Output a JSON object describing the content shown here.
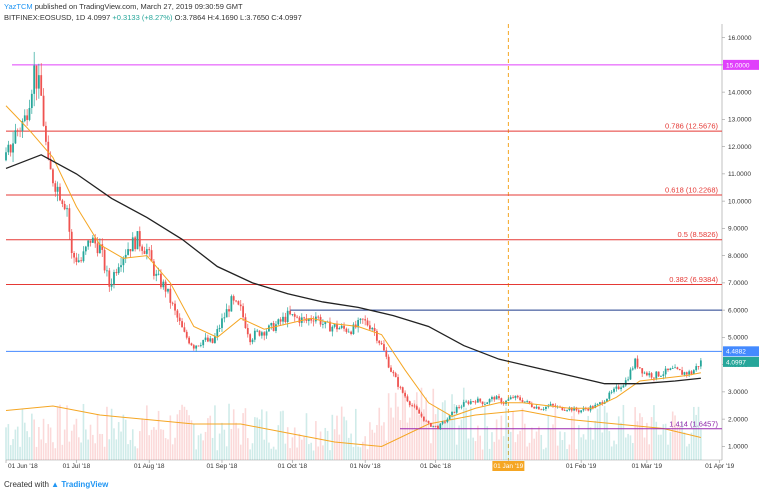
{
  "header": {
    "user": "YazTCM",
    "published": "published on TradingView.com, March 27, 2019 09:30:59 GMT",
    "symbol": "BITFINEX:EOSUSD, 1D",
    "last": "4.0997",
    "change": "+0.3133 (+8.27%)",
    "ohlc": "O:3.7864 H:4.1690 L:3.7650 C:4.0997"
  },
  "footer": {
    "created": "Created with",
    "brand": "TradingView"
  },
  "colors": {
    "up": "#26a69a",
    "down": "#ef5350",
    "fib": "#e53935",
    "ma_fast": "#f5a623",
    "ma_slow": "#222222",
    "resistance": "#1e3a8a",
    "support": "#448aff",
    "magenta": "#e040fb",
    "purple": "#9c27b0",
    "vline": "#f5a623"
  },
  "chart_data": {
    "type": "candlestick",
    "title": "",
    "xlabel": "",
    "ylabel": "",
    "ylim": [
      0.5,
      16.5
    ],
    "y_ticks": [
      "16.0000",
      "15.0000",
      "14.0000",
      "13.0000",
      "12.0000",
      "11.0000",
      "10.0000",
      "9.0000",
      "8.0000",
      "7.0000",
      "6.0000",
      "5.0000",
      "4.0000",
      "3.0000",
      "2.0000",
      "1.0000"
    ],
    "y_tick_values": [
      16,
      15,
      14,
      13,
      12,
      11,
      10,
      9,
      8,
      7,
      6,
      5,
      4,
      3,
      2,
      1
    ],
    "x_ticks": [
      "01 Jun '18",
      "01 Jul '18",
      "01 Aug '18",
      "01 Sep '18",
      "01 Oct '18",
      "01 Nov '18",
      "01 Dec '18",
      "01 Jan '19",
      "01 Feb '19",
      "01 Mar '19",
      "01 Apr '19"
    ],
    "x_tick_days": [
      0,
      30,
      61,
      92,
      122,
      153,
      183,
      214,
      245,
      273,
      304
    ],
    "fib_levels": [
      {
        "label": "0.786 (12.5676)",
        "value": 12.5676
      },
      {
        "label": "0.618 (10.2268)",
        "value": 10.2268
      },
      {
        "label": "0.5 (8.5826)",
        "value": 8.5826
      },
      {
        "label": "0.382 (6.9384)",
        "value": 6.9384
      },
      {
        "label": "1.414 (1.6457)",
        "value": 1.6457
      }
    ],
    "horizontal_lines": [
      {
        "value": 15.0,
        "badge": "15.0000"
      },
      {
        "value": 6.0
      },
      {
        "value": 4.4882,
        "badge": "4.4882"
      }
    ],
    "last_price": {
      "value": 4.0997,
      "badge": "4.0997"
    },
    "vertical_line_day": 214,
    "price_path": [
      {
        "d": 0,
        "p": 11.5
      },
      {
        "d": 4,
        "p": 12.5
      },
      {
        "d": 8,
        "p": 13.0
      },
      {
        "d": 12,
        "p": 14.8
      },
      {
        "d": 15,
        "p": 13.8
      },
      {
        "d": 18,
        "p": 11.2
      },
      {
        "d": 22,
        "p": 10.5
      },
      {
        "d": 26,
        "p": 9.8
      },
      {
        "d": 28,
        "p": 8.0
      },
      {
        "d": 32,
        "p": 7.8
      },
      {
        "d": 36,
        "p": 8.6
      },
      {
        "d": 40,
        "p": 8.3
      },
      {
        "d": 44,
        "p": 6.9
      },
      {
        "d": 48,
        "p": 7.8
      },
      {
        "d": 52,
        "p": 8.3
      },
      {
        "d": 56,
        "p": 8.6
      },
      {
        "d": 60,
        "p": 8.2
      },
      {
        "d": 64,
        "p": 7.2
      },
      {
        "d": 68,
        "p": 6.8
      },
      {
        "d": 72,
        "p": 5.9
      },
      {
        "d": 76,
        "p": 5.1
      },
      {
        "d": 80,
        "p": 4.7
      },
      {
        "d": 84,
        "p": 4.9
      },
      {
        "d": 88,
        "p": 4.8
      },
      {
        "d": 92,
        "p": 5.6
      },
      {
        "d": 96,
        "p": 6.3
      },
      {
        "d": 100,
        "p": 6.0
      },
      {
        "d": 104,
        "p": 5.0
      },
      {
        "d": 108,
        "p": 5.2
      },
      {
        "d": 112,
        "p": 5.3
      },
      {
        "d": 116,
        "p": 5.5
      },
      {
        "d": 120,
        "p": 5.8
      },
      {
        "d": 124,
        "p": 5.7
      },
      {
        "d": 128,
        "p": 5.6
      },
      {
        "d": 132,
        "p": 5.8
      },
      {
        "d": 136,
        "p": 5.4
      },
      {
        "d": 140,
        "p": 5.4
      },
      {
        "d": 144,
        "p": 5.3
      },
      {
        "d": 148,
        "p": 5.3
      },
      {
        "d": 152,
        "p": 5.6
      },
      {
        "d": 156,
        "p": 5.4
      },
      {
        "d": 160,
        "p": 4.7
      },
      {
        "d": 164,
        "p": 3.8
      },
      {
        "d": 168,
        "p": 3.1
      },
      {
        "d": 172,
        "p": 2.6
      },
      {
        "d": 176,
        "p": 2.2
      },
      {
        "d": 180,
        "p": 1.8
      },
      {
        "d": 184,
        "p": 1.7
      },
      {
        "d": 188,
        "p": 2.0
      },
      {
        "d": 192,
        "p": 2.4
      },
      {
        "d": 196,
        "p": 2.6
      },
      {
        "d": 200,
        "p": 2.7
      },
      {
        "d": 204,
        "p": 2.6
      },
      {
        "d": 208,
        "p": 2.8
      },
      {
        "d": 212,
        "p": 2.6
      },
      {
        "d": 216,
        "p": 2.8
      },
      {
        "d": 220,
        "p": 2.7
      },
      {
        "d": 224,
        "p": 2.5
      },
      {
        "d": 228,
        "p": 2.4
      },
      {
        "d": 232,
        "p": 2.5
      },
      {
        "d": 236,
        "p": 2.4
      },
      {
        "d": 240,
        "p": 2.4
      },
      {
        "d": 244,
        "p": 2.3
      },
      {
        "d": 248,
        "p": 2.4
      },
      {
        "d": 252,
        "p": 2.5
      },
      {
        "d": 256,
        "p": 2.8
      },
      {
        "d": 260,
        "p": 3.1
      },
      {
        "d": 264,
        "p": 3.4
      },
      {
        "d": 268,
        "p": 4.1
      },
      {
        "d": 272,
        "p": 3.7
      },
      {
        "d": 276,
        "p": 3.6
      },
      {
        "d": 280,
        "p": 3.7
      },
      {
        "d": 284,
        "p": 3.8
      },
      {
        "d": 288,
        "p": 3.7
      },
      {
        "d": 292,
        "p": 3.7
      },
      {
        "d": 296,
        "p": 4.1
      }
    ],
    "ma_fast": [
      {
        "d": 0,
        "p": 13.5
      },
      {
        "d": 10,
        "p": 12.6
      },
      {
        "d": 20,
        "p": 11.6
      },
      {
        "d": 30,
        "p": 9.8
      },
      {
        "d": 40,
        "p": 8.4
      },
      {
        "d": 50,
        "p": 7.9
      },
      {
        "d": 60,
        "p": 8.0
      },
      {
        "d": 70,
        "p": 7.0
      },
      {
        "d": 80,
        "p": 5.4
      },
      {
        "d": 90,
        "p": 5.0
      },
      {
        "d": 100,
        "p": 5.7
      },
      {
        "d": 110,
        "p": 5.3
      },
      {
        "d": 120,
        "p": 5.5
      },
      {
        "d": 130,
        "p": 5.7
      },
      {
        "d": 140,
        "p": 5.5
      },
      {
        "d": 150,
        "p": 5.4
      },
      {
        "d": 160,
        "p": 5.1
      },
      {
        "d": 170,
        "p": 3.8
      },
      {
        "d": 180,
        "p": 2.6
      },
      {
        "d": 190,
        "p": 2.1
      },
      {
        "d": 200,
        "p": 2.4
      },
      {
        "d": 210,
        "p": 2.6
      },
      {
        "d": 220,
        "p": 2.6
      },
      {
        "d": 230,
        "p": 2.5
      },
      {
        "d": 240,
        "p": 2.4
      },
      {
        "d": 250,
        "p": 2.4
      },
      {
        "d": 260,
        "p": 2.8
      },
      {
        "d": 270,
        "p": 3.4
      },
      {
        "d": 280,
        "p": 3.5
      },
      {
        "d": 290,
        "p": 3.6
      },
      {
        "d": 296,
        "p": 3.7
      }
    ],
    "ma_slow": [
      {
        "d": 0,
        "p": 11.2
      },
      {
        "d": 15,
        "p": 11.7
      },
      {
        "d": 30,
        "p": 11.0
      },
      {
        "d": 45,
        "p": 10.1
      },
      {
        "d": 60,
        "p": 9.4
      },
      {
        "d": 75,
        "p": 8.6
      },
      {
        "d": 90,
        "p": 7.6
      },
      {
        "d": 105,
        "p": 7.0
      },
      {
        "d": 120,
        "p": 6.6
      },
      {
        "d": 135,
        "p": 6.3
      },
      {
        "d": 150,
        "p": 6.1
      },
      {
        "d": 165,
        "p": 5.8
      },
      {
        "d": 180,
        "p": 5.4
      },
      {
        "d": 195,
        "p": 4.7
      },
      {
        "d": 210,
        "p": 4.2
      },
      {
        "d": 225,
        "p": 3.9
      },
      {
        "d": 240,
        "p": 3.6
      },
      {
        "d": 255,
        "p": 3.3
      },
      {
        "d": 270,
        "p": 3.3
      },
      {
        "d": 285,
        "p": 3.4
      },
      {
        "d": 296,
        "p": 3.5
      }
    ],
    "volume_ma": [
      {
        "d": 0,
        "v": 0.55
      },
      {
        "d": 20,
        "v": 0.6
      },
      {
        "d": 40,
        "v": 0.5
      },
      {
        "d": 60,
        "v": 0.45
      },
      {
        "d": 80,
        "v": 0.4
      },
      {
        "d": 100,
        "v": 0.4
      },
      {
        "d": 120,
        "v": 0.3
      },
      {
        "d": 140,
        "v": 0.2
      },
      {
        "d": 160,
        "v": 0.15
      },
      {
        "d": 180,
        "v": 0.4
      },
      {
        "d": 200,
        "v": 0.5
      },
      {
        "d": 220,
        "v": 0.55
      },
      {
        "d": 240,
        "v": 0.45
      },
      {
        "d": 260,
        "v": 0.4
      },
      {
        "d": 280,
        "v": 0.35
      },
      {
        "d": 296,
        "v": 0.25
      }
    ]
  }
}
